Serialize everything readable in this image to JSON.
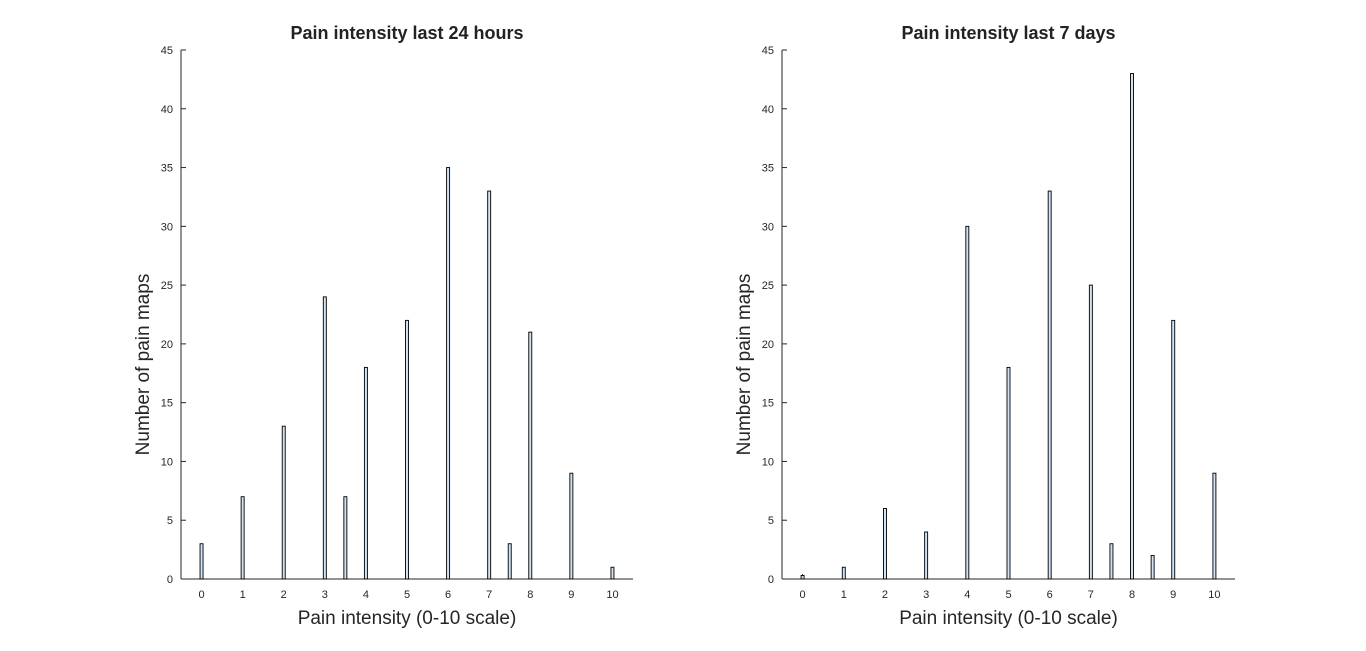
{
  "chart_data": [
    {
      "type": "bar",
      "title": "Pain intensity last 24 hours",
      "xlabel": "Pain intensity (0-10 scale)",
      "ylabel": "Number of pain maps",
      "xticks": [
        0,
        1,
        2,
        3,
        4,
        5,
        6,
        7,
        8,
        9,
        10
      ],
      "yticks": [
        0,
        5,
        10,
        15,
        20,
        25,
        30,
        35,
        40,
        45
      ],
      "xlim": [
        -0.5,
        10.5
      ],
      "ylim": [
        0,
        45
      ],
      "x": [
        0,
        1,
        2,
        3,
        3.5,
        4,
        5,
        6,
        7,
        7.5,
        8,
        9,
        10
      ],
      "values": [
        3,
        7,
        13,
        24,
        7,
        18,
        22,
        35,
        33,
        3,
        21,
        9,
        1
      ],
      "bar_color": "#cfe3f5",
      "edge_color": "#000000",
      "grid": false
    },
    {
      "type": "bar",
      "title": "Pain intensity last 7 days",
      "xlabel": "Pain intensity (0-10 scale)",
      "ylabel": "Number of pain maps",
      "xticks": [
        0,
        1,
        2,
        3,
        4,
        5,
        6,
        7,
        8,
        9,
        10
      ],
      "yticks": [
        0,
        5,
        10,
        15,
        20,
        25,
        30,
        35,
        40,
        45
      ],
      "xlim": [
        -0.5,
        10.5
      ],
      "ylim": [
        0,
        45
      ],
      "x": [
        0,
        1,
        2,
        3,
        4,
        5,
        6,
        7,
        7.5,
        8,
        8.5,
        9,
        10
      ],
      "values": [
        0.3,
        1,
        6,
        4,
        30,
        18,
        33,
        25,
        3,
        43,
        2,
        22,
        9
      ],
      "bar_color": "#cfe3f5",
      "edge_color": "#000000",
      "grid": false
    }
  ]
}
